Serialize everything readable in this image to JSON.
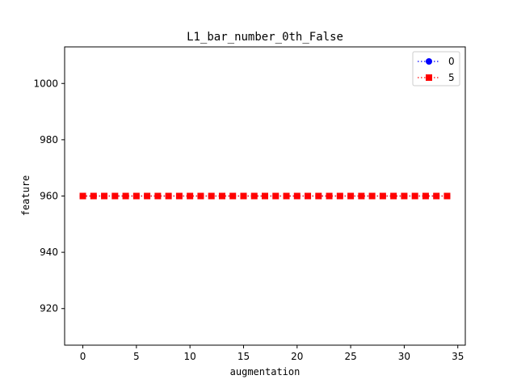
{
  "chart_data": {
    "type": "line",
    "title": "L1_bar_number_0th_False",
    "xlabel": "augmentation",
    "ylabel": "feature",
    "xlim": [
      -1.7,
      35.7
    ],
    "ylim": [
      907,
      1013
    ],
    "xticks": [
      0,
      5,
      10,
      15,
      20,
      25,
      30,
      35
    ],
    "yticks": [
      920,
      940,
      960,
      980,
      1000
    ],
    "grid": false,
    "legend_position": "top-right",
    "x": [
      0,
      1,
      2,
      3,
      4,
      5,
      6,
      7,
      8,
      9,
      10,
      11,
      12,
      13,
      14,
      15,
      16,
      17,
      18,
      19,
      20,
      21,
      22,
      23,
      24,
      25,
      26,
      27,
      28,
      29,
      30,
      31,
      32,
      33,
      34
    ],
    "series": [
      {
        "name": "0",
        "color": "#0000ff",
        "marker": "circle",
        "linestyle": "dotted",
        "values": [
          960,
          960,
          960,
          960,
          960,
          960,
          960,
          960,
          960,
          960,
          960,
          960,
          960,
          960,
          960,
          960,
          960,
          960,
          960,
          960,
          960,
          960,
          960,
          960,
          960,
          960,
          960,
          960,
          960,
          960,
          960,
          960,
          960,
          960,
          960
        ]
      },
      {
        "name": "5",
        "color": "#ff0000",
        "marker": "square",
        "linestyle": "dotted",
        "values": [
          960,
          960,
          960,
          960,
          960,
          960,
          960,
          960,
          960,
          960,
          960,
          960,
          960,
          960,
          960,
          960,
          960,
          960,
          960,
          960,
          960,
          960,
          960,
          960,
          960,
          960,
          960,
          960,
          960,
          960,
          960,
          960,
          960,
          960,
          960
        ]
      }
    ]
  }
}
